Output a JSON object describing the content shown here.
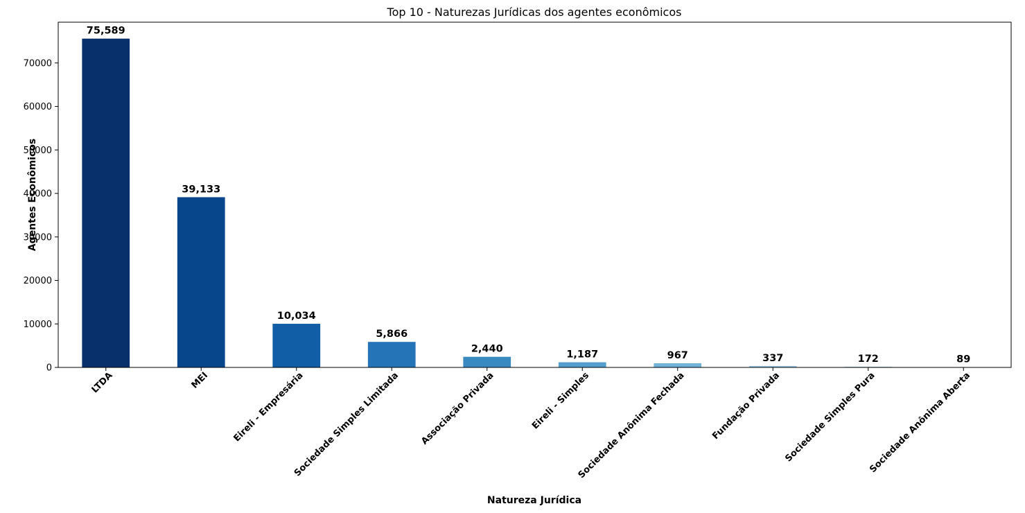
{
  "chart_data": {
    "type": "bar",
    "title": "Top 10 - Naturezas Jurídicas dos agentes econômicos",
    "xlabel": "Natureza Jurídica",
    "ylabel": "Agentes Econômicos",
    "categories": [
      "LTDA",
      "MEI",
      "Eireli - Empresária",
      "Sociedade Simples Limitada",
      "Associação Privada",
      "Eireli - Simples",
      "Sociedade Anônima Fechada",
      "Fundação Privada",
      "Sociedade Simples Pura",
      "Sociedade Anônima Aberta"
    ],
    "values": [
      75589,
      39133,
      10034,
      5866,
      2440,
      1187,
      967,
      337,
      172,
      89
    ],
    "value_labels": [
      "75,589",
      "39,133",
      "10,034",
      "5,866",
      "2,440",
      "1,187",
      "967",
      "337",
      "172",
      "89"
    ],
    "colors": [
      "#08306b",
      "#08468b",
      "#115ea6",
      "#2474b7",
      "#3a8ac2",
      "#559fcd",
      "#72b2d8",
      "#94c4df",
      "#b0d2e8",
      "#c8dcf0"
    ],
    "yticks": [
      "0",
      "10000",
      "20000",
      "30000",
      "40000",
      "50000",
      "60000",
      "70000"
    ],
    "ylim": [
      0,
      79368
    ],
    "grid": false,
    "legend": "none"
  }
}
